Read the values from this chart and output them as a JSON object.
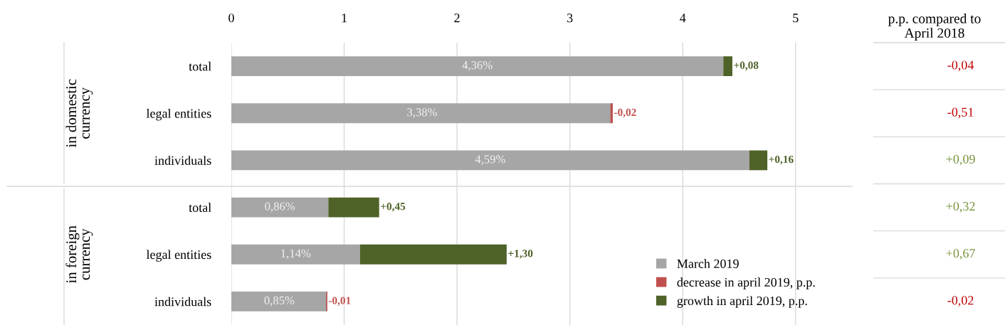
{
  "chart_data": {
    "type": "bar",
    "orientation": "horizontal",
    "stacked": true,
    "categories": [
      "total",
      "legal entities",
      "individuals",
      "total",
      "legal entities",
      "individuals"
    ],
    "series": [
      {
        "name": "March 2019",
        "color": "#a6a6a6",
        "values": [
          4.36,
          3.38,
          4.59,
          0.86,
          1.14,
          0.85
        ],
        "value_labels": [
          "4,36%",
          "3,38%",
          "4,59%",
          "0,86%",
          "1,14%",
          "0,85%"
        ]
      },
      {
        "name": "decrease in april 2019, p.p.",
        "color": "#c0504d",
        "values": [
          null,
          -0.02,
          null,
          null,
          null,
          -0.01
        ],
        "base": [
          null,
          3.38,
          null,
          null,
          null,
          0.85
        ],
        "value_labels": [
          null,
          "-0,02",
          null,
          null,
          null,
          "-0,01"
        ]
      },
      {
        "name": "growth in april 2019, p.p.",
        "color": "#4f6228",
        "values": [
          0.08,
          null,
          0.16,
          0.45,
          1.3,
          null
        ],
        "value_labels": [
          "+0,08",
          null,
          "+0,16",
          "+0,45",
          "+1,30",
          null
        ]
      }
    ],
    "xlim": [
      0,
      5.5
    ],
    "xticks": [
      0,
      1,
      2,
      3,
      4,
      5
    ],
    "grid": "x",
    "legend": "bottom right",
    "annotations": [
      "in domestic\ncurrency",
      "in foreign\ncurrency",
      "p.p. compared to\nApril 2018",
      "-0,04",
      "-0,51",
      "+0,09",
      "+0,32",
      "+0,67",
      "-0,02"
    ]
  }
}
